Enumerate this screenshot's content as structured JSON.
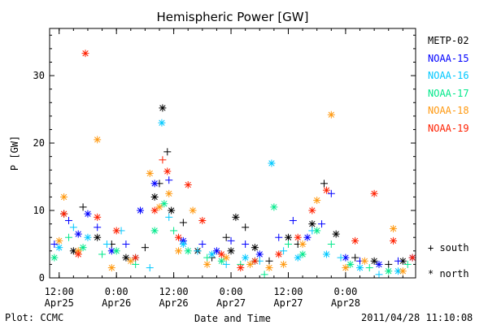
{
  "chart_data": {
    "type": "scatter",
    "title": "Hemispheric Power [GW]",
    "xlabel": "Date and Time",
    "ylabel": "P [GW]",
    "ylim": [
      0,
      37
    ],
    "xlim": [
      "2011-04-25 10:00",
      "2011-04-28 14:40"
    ],
    "x_ticks": [
      {
        "t": "2011-04-25 12:00",
        "line1": "12:00",
        "line2": "Apr25"
      },
      {
        "t": "2011-04-26 00:00",
        "line1": "0:00",
        "line2": "Apr26"
      },
      {
        "t": "2011-04-26 12:00",
        "line1": "12:00",
        "line2": "Apr26"
      },
      {
        "t": "2011-04-27 00:00",
        "line1": "0:00",
        "line2": "Apr27"
      },
      {
        "t": "2011-04-27 12:00",
        "line1": "12:00",
        "line2": "Apr27"
      },
      {
        "t": "2011-04-28 00:00",
        "line1": "0:00",
        "line2": "Apr28"
      }
    ],
    "y_ticks": [
      0,
      10,
      20,
      30
    ],
    "legend_position": "right",
    "symbols": {
      "plus": "+ south",
      "star": "* north"
    },
    "series": [
      {
        "name": "METP-02",
        "color": "#000000",
        "points": [
          [
            "2011-04-25 13:00",
            9.5,
            "+"
          ],
          [
            "2011-04-25 15:00",
            4,
            "*"
          ],
          [
            "2011-04-25 17:00",
            10.5,
            "+"
          ],
          [
            "2011-04-25 20:00",
            6,
            "*"
          ],
          [
            "2011-04-25 23:00",
            5,
            "+"
          ],
          [
            "2011-04-26 02:00",
            3,
            "*"
          ],
          [
            "2011-04-26 06:00",
            4.5,
            "+"
          ],
          [
            "2011-04-26 08:00",
            12,
            "*"
          ],
          [
            "2011-04-26 09:00",
            14,
            "+"
          ],
          [
            "2011-04-26 09:40",
            25.2,
            "*"
          ],
          [
            "2011-04-26 10:40",
            18.7,
            "+"
          ],
          [
            "2011-04-26 11:30",
            10,
            "*"
          ],
          [
            "2011-04-26 14:00",
            8.2,
            "+"
          ],
          [
            "2011-04-26 17:00",
            4,
            "*"
          ],
          [
            "2011-04-26 20:00",
            3,
            "+"
          ],
          [
            "2011-04-26 23:00",
            6,
            "+"
          ],
          [
            "2011-04-27 00:00",
            4,
            "*"
          ],
          [
            "2011-04-27 01:00",
            9,
            "*"
          ],
          [
            "2011-04-27 03:00",
            7.5,
            "+"
          ],
          [
            "2011-04-27 05:00",
            4.5,
            "*"
          ],
          [
            "2011-04-27 08:00",
            2.5,
            "+"
          ],
          [
            "2011-04-27 12:00",
            6,
            "*"
          ],
          [
            "2011-04-27 14:00",
            5,
            "+"
          ],
          [
            "2011-04-27 17:00",
            8,
            "*"
          ],
          [
            "2011-04-27 19:30",
            14,
            "+"
          ],
          [
            "2011-04-27 22:00",
            6.5,
            "*"
          ],
          [
            "2011-04-28 02:00",
            3,
            "+"
          ],
          [
            "2011-04-28 06:00",
            2.5,
            "*"
          ],
          [
            "2011-04-28 09:00",
            2,
            "+"
          ],
          [
            "2011-04-28 12:00",
            2.5,
            "*"
          ]
        ]
      },
      {
        "name": "NOAA-15",
        "color": "#0000ff",
        "points": [
          [
            "2011-04-25 11:00",
            5,
            "+"
          ],
          [
            "2011-04-25 14:00",
            8.5,
            "+"
          ],
          [
            "2011-04-25 16:00",
            6.5,
            "*"
          ],
          [
            "2011-04-25 18:00",
            9.5,
            "*"
          ],
          [
            "2011-04-25 20:00",
            7.5,
            "+"
          ],
          [
            "2011-04-25 23:00",
            4,
            "*"
          ],
          [
            "2011-04-26 02:00",
            5,
            "+"
          ],
          [
            "2011-04-26 05:00",
            10,
            "*"
          ],
          [
            "2011-04-26 08:00",
            14,
            "*"
          ],
          [
            "2011-04-26 11:00",
            14.5,
            "+"
          ],
          [
            "2011-04-26 14:00",
            5.5,
            "*"
          ],
          [
            "2011-04-26 18:00",
            5,
            "+"
          ],
          [
            "2011-04-26 21:00",
            4,
            "*"
          ],
          [
            "2011-04-27 00:00",
            5.5,
            "+"
          ],
          [
            "2011-04-27 03:00",
            5,
            "+"
          ],
          [
            "2011-04-27 06:00",
            3.5,
            "*"
          ],
          [
            "2011-04-27 10:00",
            6,
            "+"
          ],
          [
            "2011-04-27 13:00",
            8.5,
            "+"
          ],
          [
            "2011-04-27 16:00",
            6,
            "*"
          ],
          [
            "2011-04-27 19:00",
            8,
            "+"
          ],
          [
            "2011-04-27 21:00",
            12.5,
            "+"
          ],
          [
            "2011-04-28 00:00",
            3,
            "*"
          ],
          [
            "2011-04-28 03:00",
            2.5,
            "+"
          ],
          [
            "2011-04-28 07:00",
            2,
            "*"
          ],
          [
            "2011-04-28 11:00",
            2.5,
            "+"
          ],
          [
            "2011-04-28 14:00",
            3,
            "*"
          ]
        ]
      },
      {
        "name": "NOAA-16",
        "color": "#00c8ff",
        "points": [
          [
            "2011-04-25 12:00",
            4.5,
            "*"
          ],
          [
            "2011-04-25 15:00",
            7.5,
            "+"
          ],
          [
            "2011-04-25 18:00",
            6,
            "*"
          ],
          [
            "2011-04-25 22:00",
            5,
            "+"
          ],
          [
            "2011-04-26 01:00",
            7,
            "+"
          ],
          [
            "2011-04-26 04:00",
            3,
            "*"
          ],
          [
            "2011-04-26 07:00",
            1.5,
            "+"
          ],
          [
            "2011-04-26 09:30",
            23,
            "*"
          ],
          [
            "2011-04-26 11:00",
            9,
            "+"
          ],
          [
            "2011-04-26 14:00",
            5,
            "*"
          ],
          [
            "2011-04-26 17:00",
            4,
            "+"
          ],
          [
            "2011-04-26 20:00",
            3.5,
            "*"
          ],
          [
            "2011-04-26 23:00",
            2,
            "+"
          ],
          [
            "2011-04-27 03:00",
            3,
            "*"
          ],
          [
            "2011-04-27 06:00",
            2.5,
            "+"
          ],
          [
            "2011-04-27 08:30",
            17,
            "*"
          ],
          [
            "2011-04-27 11:00",
            4,
            "+"
          ],
          [
            "2011-04-27 14:00",
            3,
            "*"
          ],
          [
            "2011-04-27 17:00",
            7,
            "+"
          ],
          [
            "2011-04-27 20:00",
            3.5,
            "*"
          ],
          [
            "2011-04-27 23:00",
            3,
            "+"
          ],
          [
            "2011-04-28 03:00",
            1.5,
            "*"
          ],
          [
            "2011-04-28 07:00",
            0.5,
            "+"
          ],
          [
            "2011-04-28 11:00",
            1,
            "*"
          ]
        ]
      },
      {
        "name": "NOAA-17",
        "color": "#00e88a",
        "points": [
          [
            "2011-04-25 11:00",
            3,
            "*"
          ],
          [
            "2011-04-25 14:00",
            6,
            "+"
          ],
          [
            "2011-04-25 17:00",
            4.5,
            "*"
          ],
          [
            "2011-04-25 21:00",
            3.5,
            "+"
          ],
          [
            "2011-04-26 00:00",
            4,
            "*"
          ],
          [
            "2011-04-26 04:00",
            2,
            "+"
          ],
          [
            "2011-04-26 08:00",
            7,
            "*"
          ],
          [
            "2011-04-26 10:00",
            11,
            "*"
          ],
          [
            "2011-04-26 12:00",
            7,
            "+"
          ],
          [
            "2011-04-26 15:00",
            4,
            "*"
          ],
          [
            "2011-04-26 19:00",
            3,
            "+"
          ],
          [
            "2011-04-26 22:00",
            2.5,
            "*"
          ],
          [
            "2011-04-27 02:00",
            2,
            "+"
          ],
          [
            "2011-04-27 05:00",
            2.5,
            "*"
          ],
          [
            "2011-04-27 07:00",
            0.5,
            "+"
          ],
          [
            "2011-04-27 09:00",
            10.5,
            "*"
          ],
          [
            "2011-04-27 12:00",
            5,
            "+"
          ],
          [
            "2011-04-27 15:00",
            3.5,
            "*"
          ],
          [
            "2011-04-27 18:00",
            7,
            "*"
          ],
          [
            "2011-04-27 21:00",
            5,
            "+"
          ],
          [
            "2011-04-28 01:00",
            2,
            "*"
          ],
          [
            "2011-04-28 05:00",
            1.5,
            "+"
          ],
          [
            "2011-04-28 09:00",
            1,
            "*"
          ],
          [
            "2011-04-28 13:00",
            2,
            "+"
          ]
        ]
      },
      {
        "name": "NOAA-18",
        "color": "#ff9910",
        "points": [
          [
            "2011-04-25 12:00",
            5.5,
            "*"
          ],
          [
            "2011-04-25 13:00",
            12,
            "*"
          ],
          [
            "2011-04-25 16:00",
            4,
            "*"
          ],
          [
            "2011-04-25 20:00",
            20.5,
            "*"
          ],
          [
            "2011-04-25 23:00",
            1.5,
            "*"
          ],
          [
            "2011-04-26 03:00",
            2.5,
            "*"
          ],
          [
            "2011-04-26 07:00",
            15.5,
            "*"
          ],
          [
            "2011-04-26 09:00",
            10.5,
            "*"
          ],
          [
            "2011-04-26 11:00",
            12.5,
            "*"
          ],
          [
            "2011-04-26 13:00",
            4,
            "*"
          ],
          [
            "2011-04-26 16:00",
            10,
            "*"
          ],
          [
            "2011-04-26 19:00",
            2,
            "*"
          ],
          [
            "2011-04-26 23:00",
            3,
            "*"
          ],
          [
            "2011-04-27 04:00",
            2,
            "*"
          ],
          [
            "2011-04-27 08:00",
            1.5,
            "*"
          ],
          [
            "2011-04-27 11:00",
            2,
            "*"
          ],
          [
            "2011-04-27 15:00",
            5,
            "*"
          ],
          [
            "2011-04-27 18:00",
            11.5,
            "*"
          ],
          [
            "2011-04-27 21:00",
            24.2,
            "*"
          ],
          [
            "2011-04-28 00:00",
            1.5,
            "*"
          ],
          [
            "2011-04-28 04:00",
            2.5,
            "*"
          ],
          [
            "2011-04-28 10:00",
            7.3,
            "*"
          ],
          [
            "2011-04-28 12:00",
            1,
            "*"
          ]
        ]
      },
      {
        "name": "NOAA-19",
        "color": "#ff2000",
        "points": [
          [
            "2011-04-25 13:00",
            9.5,
            "*"
          ],
          [
            "2011-04-25 16:00",
            3.5,
            "*"
          ],
          [
            "2011-04-25 17:30",
            33.3,
            "*"
          ],
          [
            "2011-04-25 20:00",
            9,
            "*"
          ],
          [
            "2011-04-26 00:00",
            7,
            "*"
          ],
          [
            "2011-04-26 04:00",
            3,
            "*"
          ],
          [
            "2011-04-26 08:00",
            10,
            "*"
          ],
          [
            "2011-04-26 09:40",
            17.5,
            "+"
          ],
          [
            "2011-04-26 10:40",
            15.8,
            "*"
          ],
          [
            "2011-04-26 13:00",
            6,
            "*"
          ],
          [
            "2011-04-26 15:00",
            13.8,
            "*"
          ],
          [
            "2011-04-26 18:00",
            8.5,
            "*"
          ],
          [
            "2011-04-26 22:00",
            3.5,
            "*"
          ],
          [
            "2011-04-27 02:00",
            1.5,
            "*"
          ],
          [
            "2011-04-27 05:00",
            2.5,
            "*"
          ],
          [
            "2011-04-27 10:00",
            3.5,
            "*"
          ],
          [
            "2011-04-27 14:00",
            6,
            "*"
          ],
          [
            "2011-04-27 17:00",
            10,
            "*"
          ],
          [
            "2011-04-27 20:00",
            13,
            "*"
          ],
          [
            "2011-04-28 02:00",
            5.5,
            "*"
          ],
          [
            "2011-04-28 06:00",
            12.5,
            "*"
          ],
          [
            "2011-04-28 10:00",
            5.5,
            "*"
          ],
          [
            "2011-04-28 14:00",
            3,
            "*"
          ]
        ]
      }
    ]
  },
  "footer": {
    "plot_label": "Plot: CCMC",
    "timestamp": "2011/04/28 11:10:08"
  }
}
